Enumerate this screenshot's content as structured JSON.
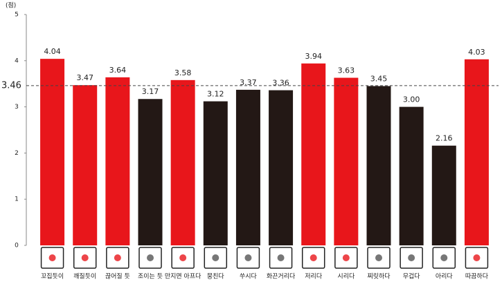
{
  "chart_data": {
    "type": "bar",
    "y_unit": "(점)",
    "categories": [
      "꼬집듯이",
      "깨질듯이",
      "끊어질 듯",
      "조이는 듯",
      "만지면 아프다",
      "뭉친다",
      "쑤시다",
      "화끈거리다",
      "저리다",
      "시리다",
      "찌릿하다",
      "무겁다",
      "아리다",
      "따끔하다"
    ],
    "values": [
      4.04,
      3.47,
      3.64,
      3.17,
      3.58,
      3.12,
      3.37,
      3.36,
      3.94,
      3.63,
      3.45,
      3.0,
      2.16,
      4.03
    ],
    "value_labels": [
      "4.04",
      "3.47",
      "3.64",
      "3.17",
      "3.58",
      "3.12",
      "3.37",
      "3.36",
      "3.94",
      "3.63",
      "3.45",
      "3.00",
      "2.16",
      "4.03"
    ],
    "colors": [
      "#e8161b",
      "#e8161b",
      "#e8161b",
      "#231815",
      "#e8161b",
      "#231815",
      "#231815",
      "#231815",
      "#e8161b",
      "#e8161b",
      "#231815",
      "#231815",
      "#231815",
      "#e8161b"
    ],
    "reference_line": 3.46,
    "ylim": [
      0,
      5
    ],
    "yticks": [
      0,
      1,
      2,
      3,
      4,
      5
    ],
    "grid": false
  }
}
